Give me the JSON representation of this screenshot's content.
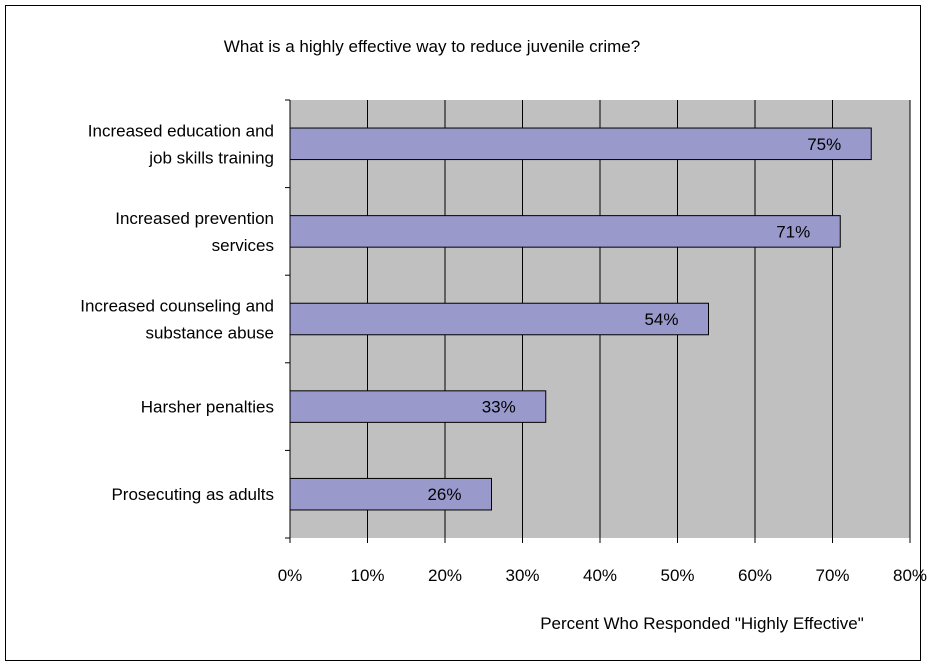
{
  "chart_data": {
    "type": "bar",
    "orientation": "horizontal",
    "title": "What is a highly effective way to reduce juvenile crime?",
    "xlabel": "Percent Who Responded \"Highly Effective\"",
    "ylabel": "",
    "xlim": [
      0,
      80
    ],
    "x_ticks": [
      "0%",
      "10%",
      "20%",
      "30%",
      "40%",
      "50%",
      "60%",
      "70%",
      "80%"
    ],
    "categories": [
      [
        "Increased education and",
        "job skills training"
      ],
      [
        "Increased prevention",
        "services"
      ],
      [
        "Increased counseling and",
        "substance abuse"
      ],
      [
        "Harsher penalties"
      ],
      [
        "Prosecuting as adults"
      ]
    ],
    "values": [
      75,
      71,
      54,
      33,
      26
    ],
    "data_labels": [
      "75%",
      "71%",
      "54%",
      "33%",
      "26%"
    ],
    "grid": true,
    "legend": "none",
    "colors": {
      "bar": "#9999cc",
      "plot_background": "#c0c0c0",
      "gridline": "#000000"
    }
  }
}
